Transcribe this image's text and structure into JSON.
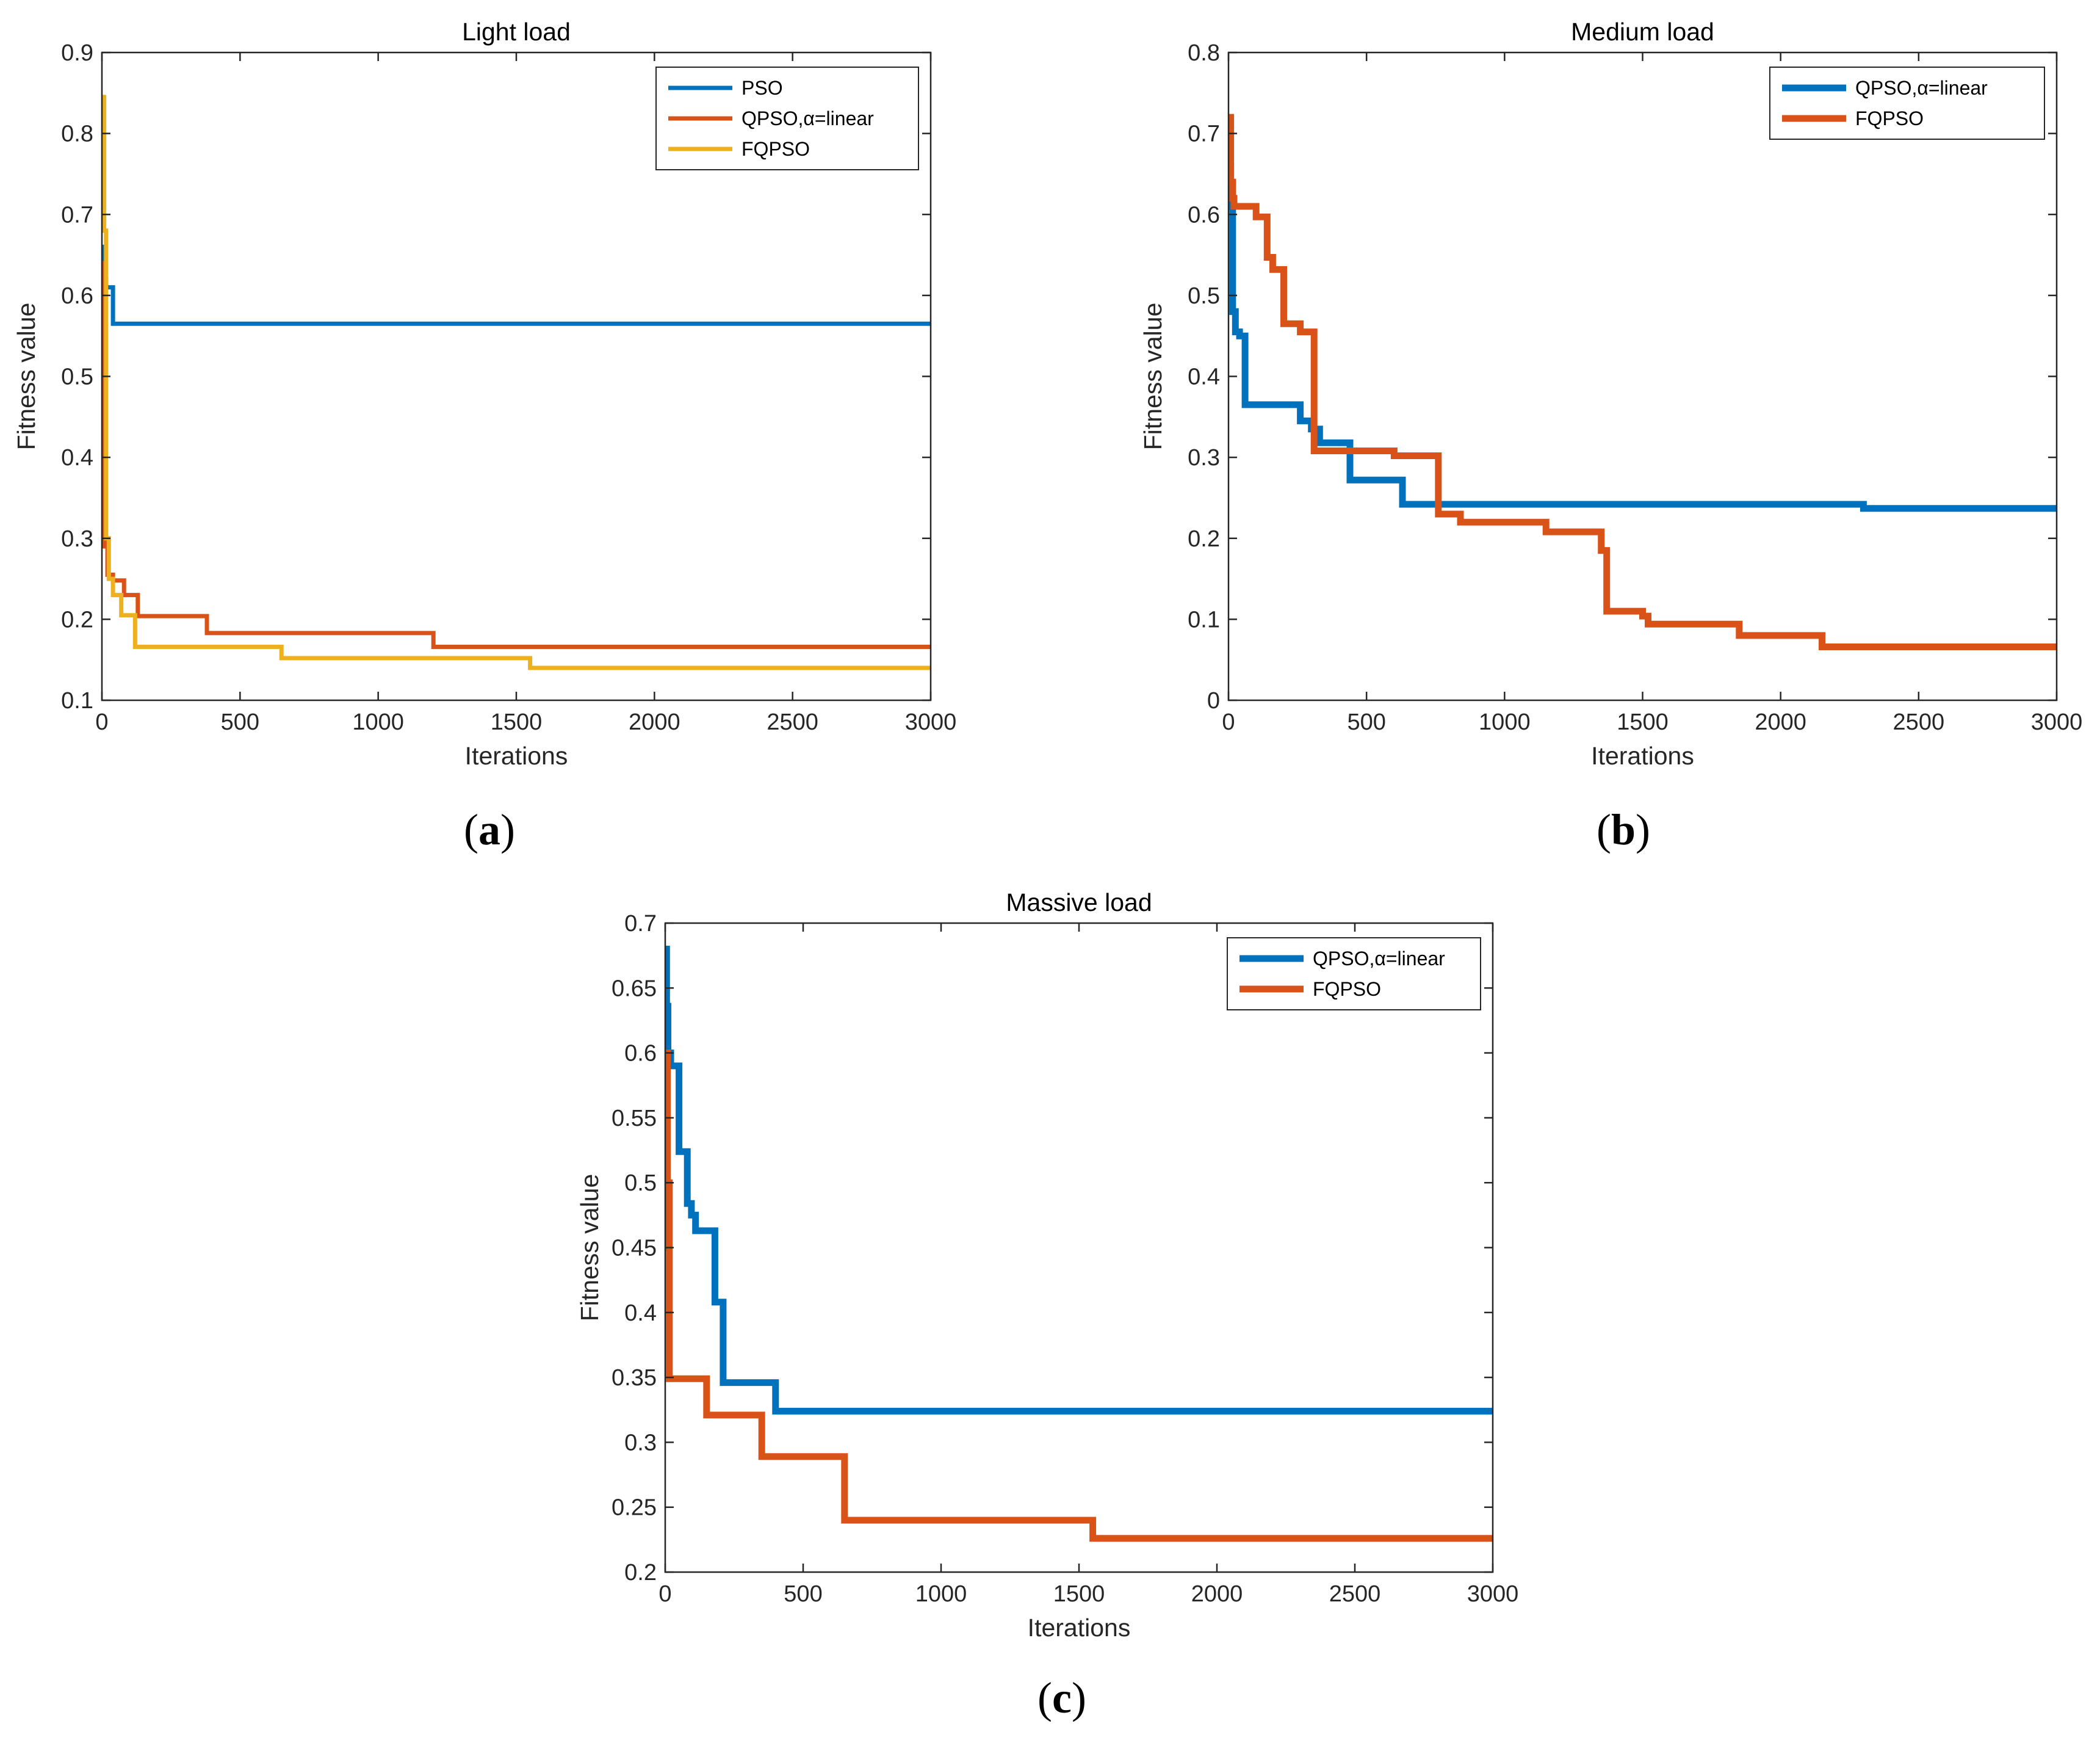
{
  "figure": {
    "captions": [
      {
        "open": "(",
        "letter": "a",
        "close": ")"
      },
      {
        "open": "(",
        "letter": "b",
        "close": ")"
      },
      {
        "open": "(",
        "letter": "c",
        "close": ")"
      }
    ]
  },
  "chart_data": [
    {
      "type": "line",
      "step": true,
      "title": "Light load",
      "xlabel": "Iterations",
      "ylabel": "Fitness value",
      "xlim": [
        0,
        3000
      ],
      "ylim": [
        0.1,
        0.9
      ],
      "xticks": [
        0,
        500,
        1000,
        1500,
        2000,
        2500,
        3000
      ],
      "xtick_labels": [
        "0",
        "500",
        "1000",
        "1500",
        "2000",
        "2500",
        "3000"
      ],
      "yticks": [
        0.1,
        0.2,
        0.3,
        0.4,
        0.5,
        0.6,
        0.7,
        0.8,
        0.9
      ],
      "ytick_labels": [
        "0.1",
        "0.2",
        "0.3",
        "0.4",
        "0.5",
        "0.6",
        "0.7",
        "0.8",
        "0.9"
      ],
      "grid": false,
      "legend_position": "top-right",
      "series": [
        {
          "name": "PSO",
          "color": "#0072BD",
          "x": [
            0,
            5,
            15,
            40,
            3000
          ],
          "y": [
            0.66,
            0.62,
            0.61,
            0.565,
            0.565
          ]
        },
        {
          "name": "QPSO,α=linear",
          "color": "#D95319",
          "x": [
            0,
            5,
            10,
            20,
            40,
            80,
            130,
            380,
            1200,
            3000
          ],
          "y": [
            0.64,
            0.41,
            0.29,
            0.255,
            0.248,
            0.23,
            0.204,
            0.183,
            0.166,
            0.166
          ]
        },
        {
          "name": "FQPSO",
          "color": "#EDB120",
          "x": [
            0,
            3,
            8,
            15,
            25,
            40,
            70,
            120,
            650,
            1550,
            3000
          ],
          "y": [
            0.82,
            0.845,
            0.68,
            0.3,
            0.25,
            0.23,
            0.205,
            0.166,
            0.152,
            0.14,
            0.14
          ]
        }
      ]
    },
    {
      "type": "line",
      "step": true,
      "title": "Medium load",
      "xlabel": "Iterations",
      "ylabel": "Fitness value",
      "xlim": [
        0,
        3000
      ],
      "ylim": [
        0,
        0.8
      ],
      "xticks": [
        0,
        500,
        1000,
        1500,
        2000,
        2500,
        3000
      ],
      "xtick_labels": [
        "0",
        "500",
        "1000",
        "1500",
        "2000",
        "2500",
        "3000"
      ],
      "yticks": [
        0,
        0.1,
        0.2,
        0.3,
        0.4,
        0.5,
        0.6,
        0.7,
        0.8
      ],
      "ytick_labels": [
        "0",
        "0.1",
        "0.2",
        "0.3",
        "0.4",
        "0.5",
        "0.6",
        "0.7",
        "0.8"
      ],
      "grid": false,
      "legend_position": "top-right",
      "series": [
        {
          "name": "QPSO,α=linear",
          "color": "#0072BD",
          "x": [
            0,
            8,
            15,
            25,
            40,
            60,
            260,
            300,
            330,
            440,
            630,
            2300,
            3000
          ],
          "y": [
            0.66,
            0.61,
            0.48,
            0.455,
            0.45,
            0.365,
            0.345,
            0.335,
            0.318,
            0.272,
            0.242,
            0.237,
            0.237
          ]
        },
        {
          "name": "FQPSO",
          "color": "#D95319",
          "x": [
            0,
            8,
            15,
            20,
            100,
            140,
            160,
            200,
            260,
            310,
            600,
            760,
            840,
            1150,
            1350,
            1370,
            1500,
            1520,
            1850,
            2150,
            3000
          ],
          "y": [
            0.72,
            0.64,
            0.62,
            0.61,
            0.597,
            0.547,
            0.532,
            0.465,
            0.455,
            0.308,
            0.302,
            0.23,
            0.22,
            0.208,
            0.185,
            0.11,
            0.104,
            0.094,
            0.08,
            0.066,
            0.066
          ]
        }
      ]
    },
    {
      "type": "line",
      "step": true,
      "title": "Massive load",
      "xlabel": "Iterations",
      "ylabel": "Fitness value",
      "xlim": [
        0,
        3000
      ],
      "ylim": [
        0.2,
        0.7
      ],
      "xticks": [
        0,
        500,
        1000,
        1500,
        2000,
        2500,
        3000
      ],
      "xtick_labels": [
        "0",
        "500",
        "1000",
        "1500",
        "2000",
        "2500",
        "3000"
      ],
      "yticks": [
        0.2,
        0.25,
        0.3,
        0.35,
        0.4,
        0.45,
        0.5,
        0.55,
        0.6,
        0.65,
        0.7
      ],
      "ytick_labels": [
        "0.2",
        "0.25",
        "0.3",
        "0.35",
        "0.4",
        "0.45",
        "0.5",
        "0.55",
        "0.6",
        "0.65",
        "0.7"
      ],
      "grid": false,
      "legend_position": "top-right",
      "series": [
        {
          "name": "QPSO,α=linear",
          "color": "#0072BD",
          "x": [
            0,
            5,
            10,
            20,
            50,
            80,
            95,
            110,
            180,
            210,
            400,
            3000
          ],
          "y": [
            0.68,
            0.636,
            0.6,
            0.59,
            0.524,
            0.484,
            0.475,
            0.463,
            0.408,
            0.346,
            0.324,
            0.324
          ]
        },
        {
          "name": "FQPSO",
          "color": "#D95319",
          "x": [
            0,
            3,
            8,
            15,
            150,
            350,
            650,
            1550,
            3000
          ],
          "y": [
            0.45,
            0.6,
            0.5,
            0.349,
            0.321,
            0.289,
            0.24,
            0.226,
            0.226
          ]
        }
      ]
    }
  ]
}
